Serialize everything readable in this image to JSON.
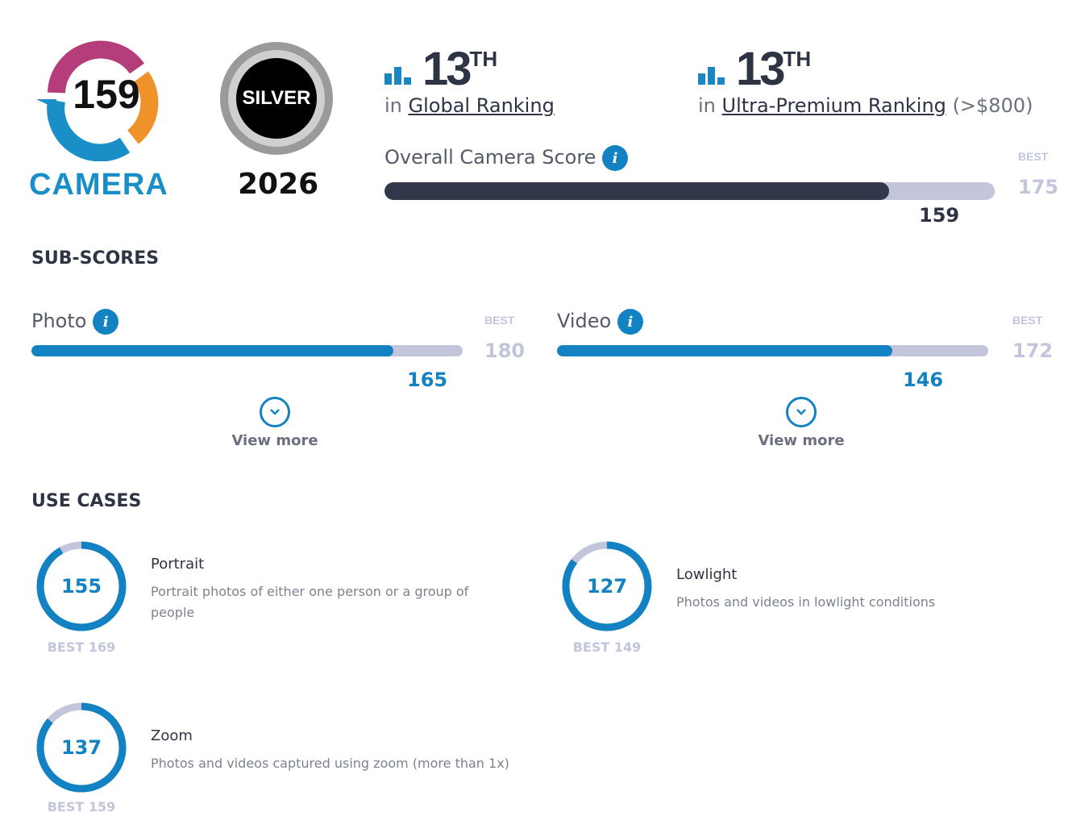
{
  "badges": {
    "camera_score": "159",
    "camera_label": "CAMERA",
    "award": "SILVER",
    "award_year": "2026"
  },
  "rankings": [
    {
      "rank": "13",
      "suffix": "TH",
      "prefix": "in",
      "link": "Global Ranking",
      "extra": ""
    },
    {
      "rank": "13",
      "suffix": "TH",
      "prefix": "in",
      "link": "Ultra-Premium Ranking",
      "extra": "(>$800)"
    }
  ],
  "overall": {
    "label": "Overall Camera Score",
    "best_label": "BEST",
    "best": "175",
    "score": "159",
    "value": 159,
    "max": 175,
    "color": "#31384a"
  },
  "subscores": {
    "heading": "SUB-SCORES",
    "items": [
      {
        "label": "Photo",
        "best_label": "BEST",
        "best": "180",
        "score": "165",
        "value": 165,
        "max": 180,
        "view_more": "View more"
      },
      {
        "label": "Video",
        "best_label": "BEST",
        "best": "172",
        "score": "146",
        "value": 146,
        "max": 172,
        "view_more": "View more"
      }
    ]
  },
  "use_cases": {
    "heading": "USE CASES",
    "items": [
      {
        "title": "Portrait",
        "desc": "Portrait photos of either one person or a group of people",
        "score": "155",
        "best": "BEST 169",
        "value": 155,
        "max": 169
      },
      {
        "title": "Lowlight",
        "desc": "Photos and videos in lowlight conditions",
        "score": "127",
        "best": "BEST 149",
        "value": 127,
        "max": 149
      },
      {
        "title": "Zoom",
        "desc": "Photos and videos captured using zoom (more than 1x)",
        "score": "137",
        "best": "BEST 159",
        "value": 137,
        "max": 159
      }
    ]
  },
  "colors": {
    "accent": "#1282c2",
    "track": "#c3c6db"
  }
}
